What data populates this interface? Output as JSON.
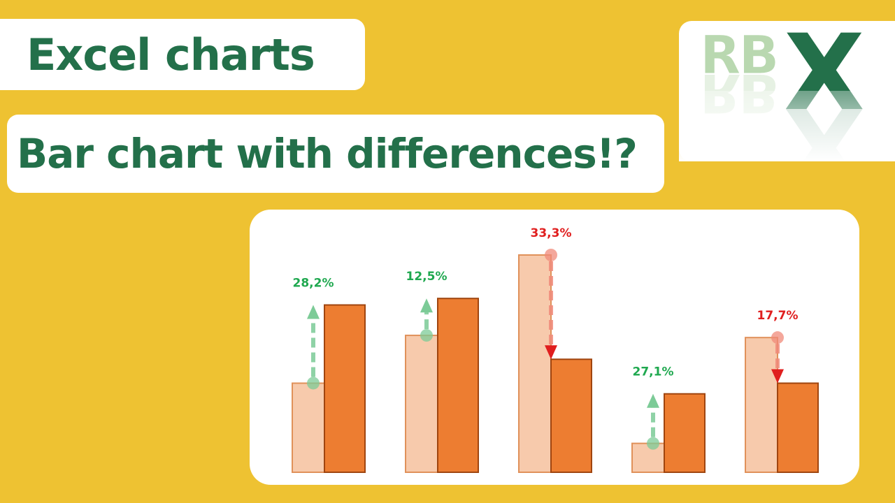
{
  "titles": {
    "main": "Excel charts",
    "sub": "Bar chart with differences!?"
  },
  "logo": {
    "text_left": "RB",
    "text_right": "X",
    "color_light": "#B9D8B0",
    "color_dark": "#23704A"
  },
  "colors": {
    "background": "#EEC232",
    "title_text": "#23704A",
    "bar_previous": "#F7CAAC",
    "bar_previous_border": "#E0915A",
    "bar_current": "#ED7D31",
    "bar_current_border": "#A0450F",
    "increase": "#1FA84F",
    "increase_arrow": "#7CCB97",
    "decrease": "#E01E1E",
    "decrease_arrow": "#F08A7A"
  },
  "chart_data": {
    "type": "bar",
    "ylim": [
      0,
      100
    ],
    "series": [
      {
        "values": [
          41,
          63,
          100,
          13.3,
          62
        ]
      },
      {
        "values": [
          77,
          80,
          52,
          36.1,
          41
        ]
      }
    ],
    "differences": [
      {
        "label": "28,2%",
        "direction": "up"
      },
      {
        "label": "12,5%",
        "direction": "up"
      },
      {
        "label": "33,3%",
        "direction": "down"
      },
      {
        "label": "27,1%",
        "direction": "up"
      },
      {
        "label": "17,7%",
        "direction": "down"
      }
    ]
  }
}
